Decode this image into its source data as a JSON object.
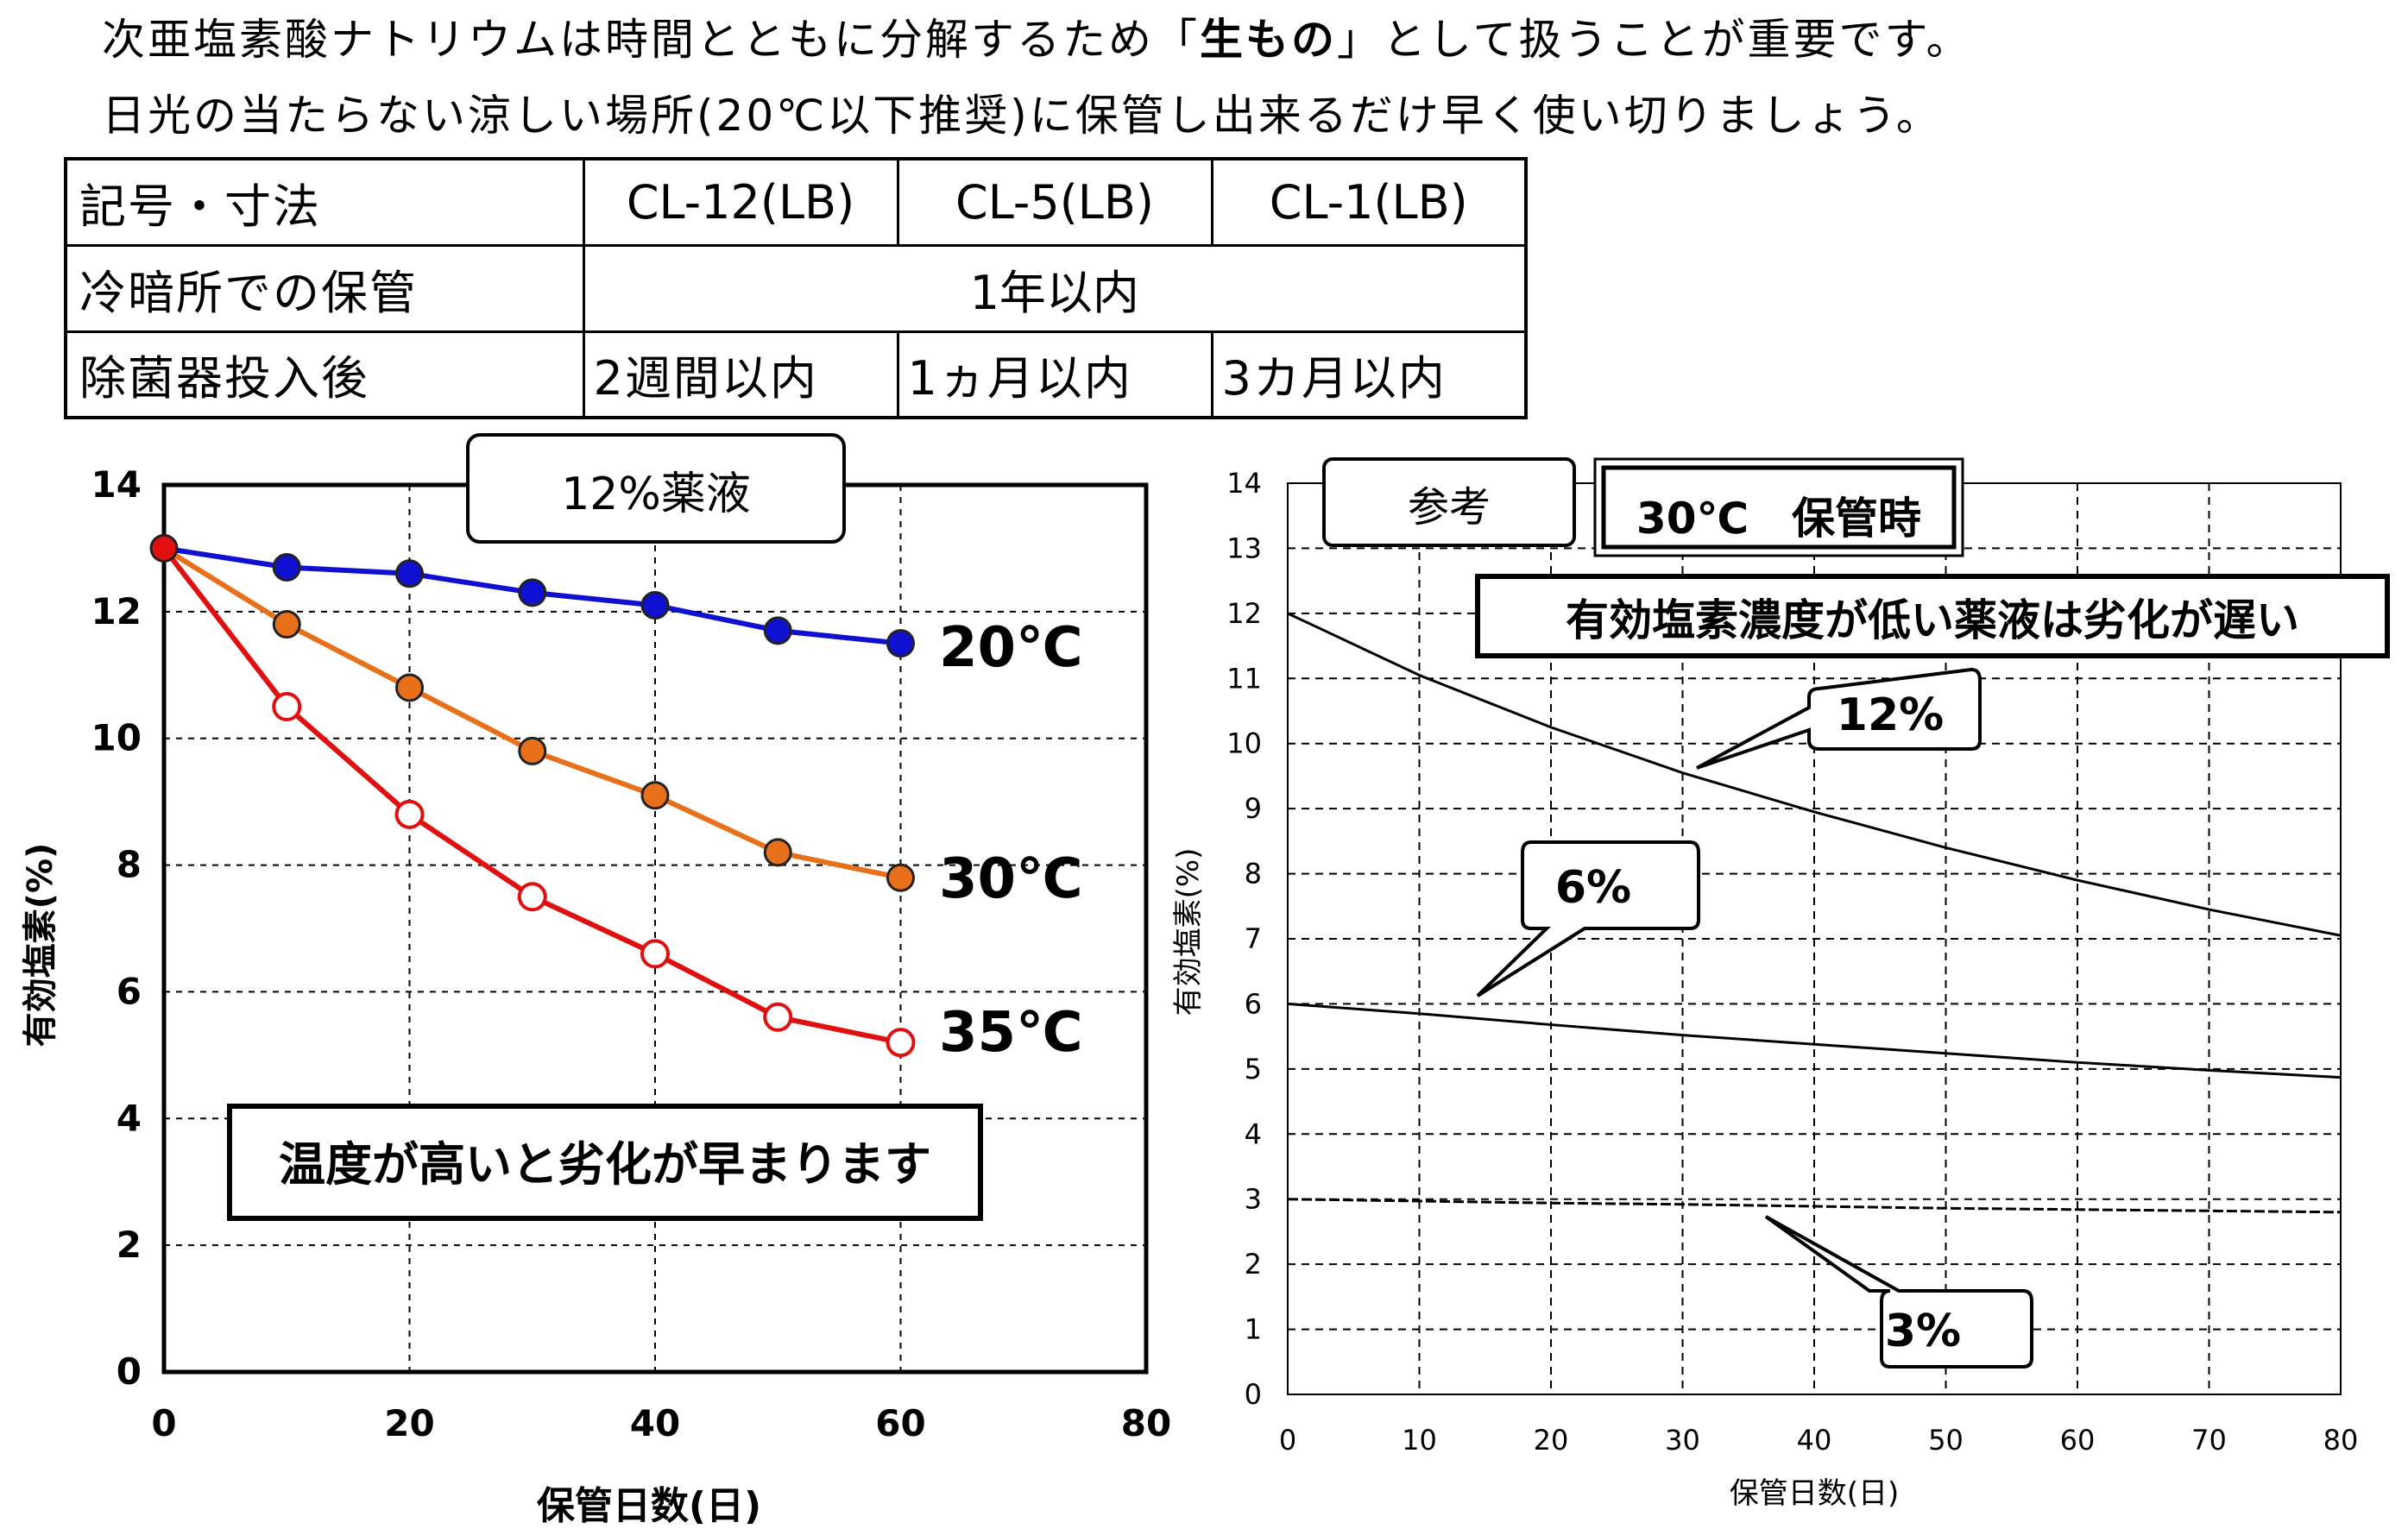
{
  "intro": {
    "line1_pre": "次亜塩素酸ナトリウムは時間とともに分解するため「",
    "line1_bold": "生もの",
    "line1_post": "」として扱うことが重要です。",
    "line2": "日光の当たらない涼しい場所(20℃以下推奨)に保管し出来るだけ早く使い切りましょう。"
  },
  "table": {
    "header": {
      "label": "記号・寸法",
      "cols": [
        "CL-12(LB)",
        "CL-5(LB)",
        "CL-1(LB)"
      ]
    },
    "row_storage": {
      "label": "冷暗所での保管",
      "value": "1年以内"
    },
    "row_after": {
      "label": "除菌器投入後",
      "values": [
        "2週間以内",
        "1ヵ月以内",
        "3カ月以内"
      ]
    }
  },
  "colors": {
    "blue": "#1010d0",
    "orange": "#e8701a",
    "red": "#e01010",
    "black": "#000000"
  },
  "chart_data": [
    {
      "type": "line",
      "title": "12%薬液",
      "xlabel": "保管日数(日)",
      "ylabel": "有効塩素(%)",
      "xlim": [
        0,
        80
      ],
      "ylim": [
        0,
        14
      ],
      "xticks": [
        "0",
        "20",
        "40",
        "60",
        "80"
      ],
      "yticks": [
        "0",
        "2",
        "4",
        "6",
        "8",
        "10",
        "12",
        "14"
      ],
      "grid": true,
      "x": [
        0,
        10,
        20,
        30,
        40,
        50,
        60
      ],
      "series": [
        {
          "name": "20℃",
          "values": [
            13.0,
            12.7,
            12.6,
            12.3,
            12.1,
            11.7,
            11.5
          ]
        },
        {
          "name": "30℃",
          "values": [
            13.0,
            11.8,
            10.8,
            9.8,
            9.1,
            8.2,
            7.8
          ]
        },
        {
          "name": "35℃",
          "values": [
            13.0,
            10.5,
            8.8,
            7.5,
            6.6,
            5.6,
            5.2
          ]
        }
      ],
      "annotation": "温度が高いと劣化が早まります"
    },
    {
      "type": "line",
      "title": "30℃　保管時",
      "tag": "参考",
      "xlabel": "保管日数(日)",
      "ylabel": "有効塩素(%)",
      "xlim": [
        0,
        80
      ],
      "ylim": [
        0,
        14
      ],
      "xticks": [
        "0",
        "10",
        "20",
        "30",
        "40",
        "50",
        "60",
        "70",
        "80"
      ],
      "yticks": [
        "0",
        "1",
        "2",
        "3",
        "4",
        "5",
        "6",
        "7",
        "8",
        "9",
        "10",
        "11",
        "12",
        "13",
        "14"
      ],
      "grid": true,
      "x": [
        0,
        10,
        20,
        30,
        40,
        50,
        60,
        70,
        80
      ],
      "series": [
        {
          "name": "12%",
          "values": [
            12.0,
            11.05,
            10.25,
            9.55,
            8.95,
            8.4,
            7.9,
            7.45,
            7.05
          ]
        },
        {
          "name": "6%",
          "values": [
            6.0,
            5.85,
            5.68,
            5.52,
            5.38,
            5.24,
            5.1,
            4.98,
            4.87
          ]
        },
        {
          "name": "3%",
          "values": [
            3.0,
            2.97,
            2.94,
            2.92,
            2.89,
            2.86,
            2.84,
            2.82,
            2.8
          ]
        }
      ],
      "annotation": "有効塩素濃度が低い薬液は劣化が遅い"
    }
  ]
}
